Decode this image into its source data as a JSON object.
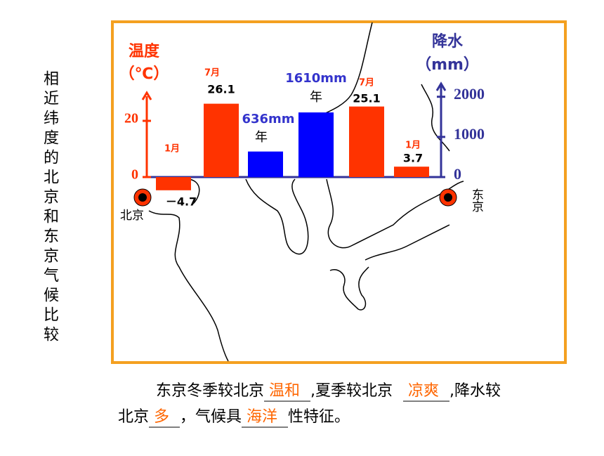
{
  "side_title": "相近纬度的北京和东京气候比较",
  "chart_data": {
    "type": "bar",
    "y_label": [
      "温度",
      "（℃）"
    ],
    "y2_label": [
      "降水",
      "（mm）"
    ],
    "ylim": [
      0,
      30
    ],
    "yticks": [
      0,
      20
    ],
    "y_color": "#ff3300",
    "y2lim": [
      0,
      2100
    ],
    "y2ticks": [
      0,
      1000,
      2000
    ],
    "y2_color": "#333399",
    "cities": [
      "北京",
      "东京"
    ],
    "bars": [
      {
        "category": "1月",
        "value": -4.7,
        "value_label": "－4.7",
        "axis": "y",
        "color": "#ff3300"
      },
      {
        "category": "7月",
        "value": 26.1,
        "axis": "y",
        "color": "#ff3300"
      },
      {
        "category": "年",
        "value": 636,
        "value_label": "636mm",
        "axis": "y2",
        "color": "#0000ff"
      },
      {
        "category": "年",
        "value": 1610,
        "value_label": "1610mm",
        "axis": "y2",
        "color": "#0000ff"
      },
      {
        "category": "7月",
        "value": 25.1,
        "axis": "y",
        "color": "#ff3300"
      },
      {
        "category": "1月",
        "value": 3.7,
        "axis": "y",
        "color": "#ff3300"
      }
    ]
  },
  "sentence": {
    "line1": [
      "东京冬季较北京",
      "温和",
      ",夏季较北京",
      "凉爽",
      ",降水较"
    ],
    "line2": [
      "北京",
      "多",
      "，气候具",
      "海洋",
      "性特征。"
    ]
  }
}
